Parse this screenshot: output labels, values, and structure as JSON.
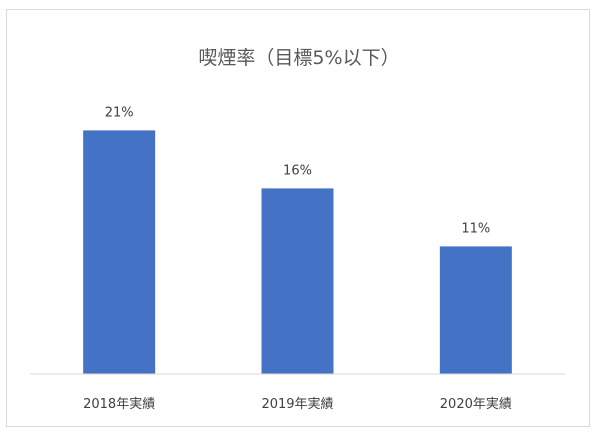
{
  "chart_data": {
    "type": "bar",
    "title": "喫煙率（目標5%以下）",
    "xlabel": "",
    "ylabel": "",
    "categories": [
      "2018年実績",
      "2019年実績",
      "2020年実績"
    ],
    "values": [
      21,
      16,
      11
    ],
    "value_labels": [
      "21%",
      "16%",
      "11%"
    ],
    "unit": "%",
    "ylim": [
      0,
      25
    ],
    "grid": false,
    "legend": "none",
    "bar_color": "#4472C4",
    "axis_color": "#d9d9d9"
  }
}
